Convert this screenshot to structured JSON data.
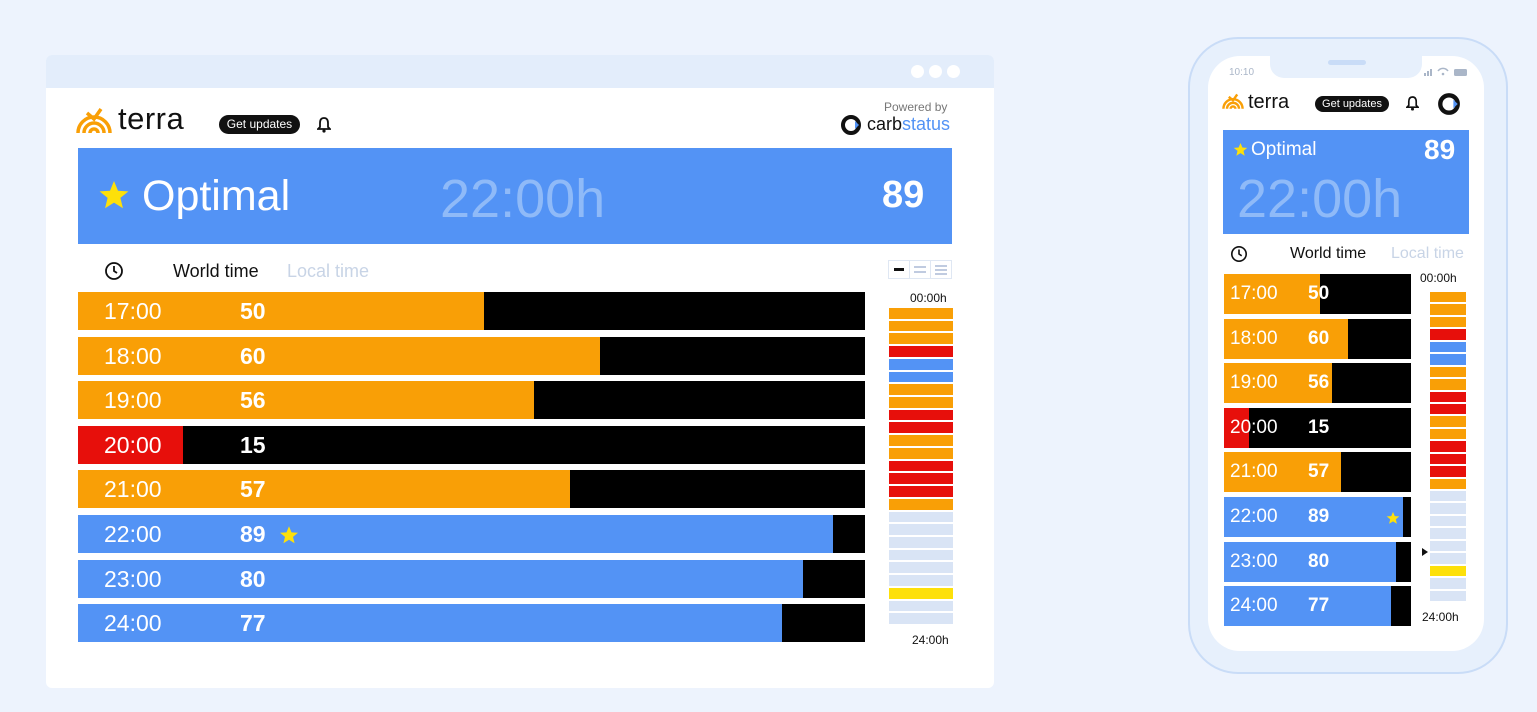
{
  "colors": {
    "orange": "#f99f06",
    "red": "#e70f0b",
    "blue": "#5393f5",
    "yellow": "#fde00a",
    "pale": "#d9e4f5",
    "black": "#000000"
  },
  "brand": {
    "name": "terra",
    "get_updates": "Get updates",
    "powered_by": "Powered by",
    "partner_prefix": "carb",
    "partner_suffix": "status"
  },
  "desktop": {
    "status": {
      "label": "Optimal",
      "time": "22:00h",
      "score": "89"
    },
    "tabs": {
      "world": "World time",
      "local": "Local time"
    },
    "strip_start": "00:00h",
    "strip_end": "24:00h",
    "rows": [
      {
        "time": "17:00",
        "score": "50",
        "level": "orange",
        "fill": 0.516,
        "star": false
      },
      {
        "time": "18:00",
        "score": "60",
        "level": "orange",
        "fill": 0.663,
        "star": false
      },
      {
        "time": "19:00",
        "score": "56",
        "level": "orange",
        "fill": 0.579,
        "star": false
      },
      {
        "time": "20:00",
        "score": "15",
        "level": "red",
        "fill": 0.134,
        "star": false
      },
      {
        "time": "21:00",
        "score": "57",
        "level": "orange",
        "fill": 0.625,
        "star": false
      },
      {
        "time": "22:00",
        "score": "89",
        "level": "blue",
        "fill": 0.959,
        "star": true
      },
      {
        "time": "23:00",
        "score": "80",
        "level": "blue",
        "fill": 0.921,
        "star": false
      },
      {
        "time": "24:00",
        "score": "77",
        "level": "blue",
        "fill": 0.895,
        "star": false
      }
    ],
    "strip": [
      "orange",
      "orange",
      "orange",
      "red",
      "blue",
      "blue",
      "orange",
      "orange",
      "red",
      "red",
      "orange",
      "orange",
      "red",
      "red",
      "red",
      "orange",
      "pale",
      "pale",
      "pale",
      "pale",
      "pale",
      "pale",
      "yellow",
      "pale",
      "pale"
    ]
  },
  "mobile": {
    "status_time": "10:10",
    "status": {
      "label": "Optimal",
      "time": "22:00h",
      "score": "89"
    },
    "tabs": {
      "world": "World time",
      "local": "Local time"
    },
    "strip_start": "00:00h",
    "strip_end": "24:00h",
    "rows": [
      {
        "time": "17:00",
        "score": "50",
        "level": "orange",
        "fill": 0.516,
        "star": false
      },
      {
        "time": "18:00",
        "score": "60",
        "level": "orange",
        "fill": 0.663,
        "star": false
      },
      {
        "time": "19:00",
        "score": "56",
        "level": "orange",
        "fill": 0.579,
        "star": false
      },
      {
        "time": "20:00",
        "score": "15",
        "level": "red",
        "fill": 0.134,
        "star": false
      },
      {
        "time": "21:00",
        "score": "57",
        "level": "orange",
        "fill": 0.625,
        "star": false
      },
      {
        "time": "22:00",
        "score": "89",
        "level": "blue",
        "fill": 0.959,
        "star": true
      },
      {
        "time": "23:00",
        "score": "80",
        "level": "blue",
        "fill": 0.921,
        "star": false
      },
      {
        "time": "24:00",
        "score": "77",
        "level": "blue",
        "fill": 0.895,
        "star": false
      }
    ],
    "strip": [
      "orange",
      "orange",
      "orange",
      "red",
      "blue",
      "blue",
      "orange",
      "orange",
      "red",
      "red",
      "orange",
      "orange",
      "red",
      "red",
      "red",
      "orange",
      "pale",
      "pale",
      "pale",
      "pale",
      "pale",
      "pale",
      "yellow",
      "pale",
      "pale"
    ]
  }
}
